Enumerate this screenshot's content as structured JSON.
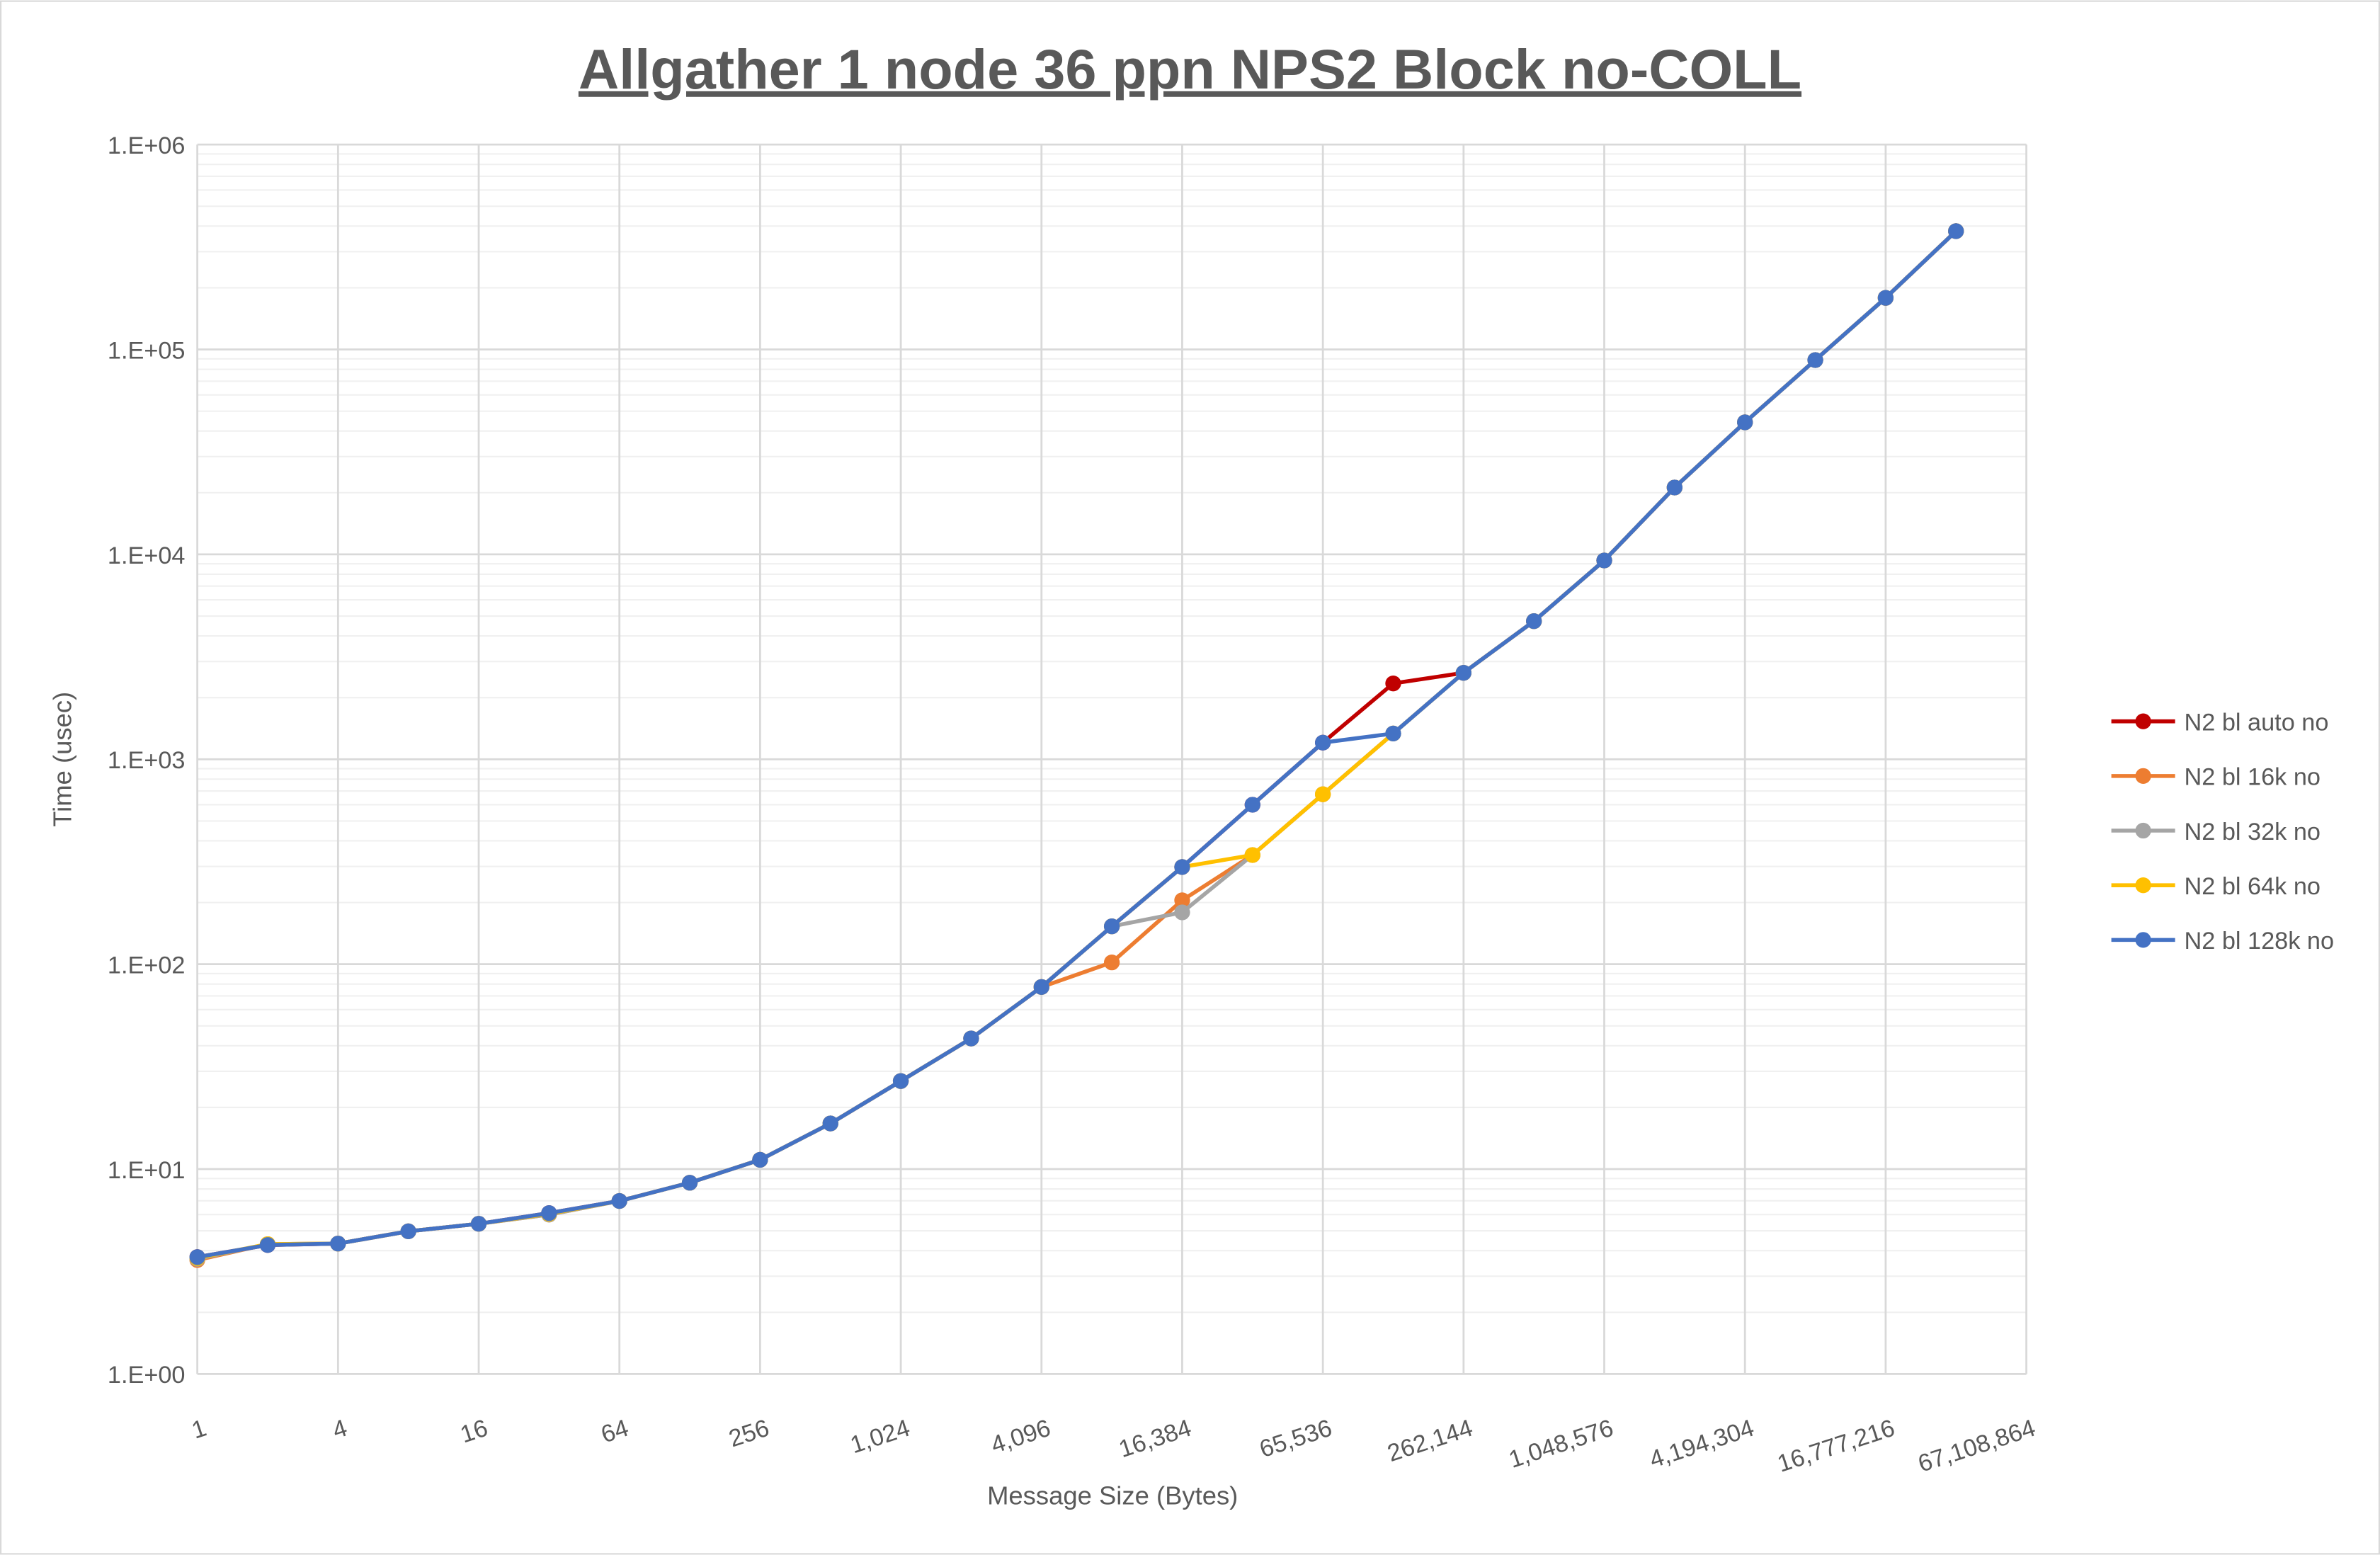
{
  "chart_data": {
    "type": "line",
    "title": "Allgather 1 node 36 ppn NPS2 Block no-COLL",
    "xlabel": "Message Size (Bytes)",
    "ylabel": "Time (usec)",
    "x_scale": "log2",
    "y_scale": "log10",
    "ylim": [
      1,
      1000000
    ],
    "xlim": [
      1,
      67108864
    ],
    "grid": true,
    "legend_position": "right",
    "x_tick_labels": [
      "1",
      "4",
      "16",
      "64",
      "256",
      "1,024",
      "4,096",
      "16,384",
      "65,536",
      "262,144",
      "1,048,576",
      "4,194,304",
      "16,777,216",
      "67,108,864"
    ],
    "y_tick_labels": [
      "1.E+00",
      "1.E+01",
      "1.E+02",
      "1.E+03",
      "1.E+04",
      "1.E+05",
      "1.E+06"
    ],
    "x": [
      1,
      2,
      4,
      8,
      16,
      32,
      64,
      128,
      256,
      512,
      1024,
      2048,
      4096,
      8192,
      16384,
      32768,
      65536,
      131072,
      262144,
      524288,
      1048576,
      2097152,
      4194304,
      8388608,
      16777216,
      33554432
    ],
    "series": [
      {
        "name": "N2 bl auto no",
        "color": "#C00000",
        "values": [
          3.72,
          4.26,
          4.33,
          4.97,
          5.41,
          6.1,
          6.99,
          8.58,
          11.1,
          16.7,
          26.9,
          43.4,
          77.4,
          153,
          298,
          600,
          1206,
          2345,
          2642,
          4722,
          9340,
          21200,
          44100,
          88800,
          178600,
          378000
        ]
      },
      {
        "name": "N2 bl 16k no",
        "color": "#ED7D31",
        "values": [
          3.6,
          4.3,
          4.33,
          4.97,
          5.41,
          6.0,
          6.99,
          8.58,
          11.1,
          16.7,
          26.9,
          43.4,
          77.4,
          102,
          205,
          341,
          675,
          1336,
          2642,
          4722,
          9340,
          21200,
          44100,
          88800,
          178600,
          378000
        ]
      },
      {
        "name": "N2 bl 32k no",
        "color": "#A5A5A5",
        "values": [
          3.65,
          4.3,
          4.33,
          4.97,
          5.41,
          6.0,
          6.99,
          8.58,
          11.1,
          16.7,
          26.9,
          43.4,
          77.4,
          153,
          179,
          341,
          675,
          1336,
          2642,
          4722,
          9340,
          21200,
          44100,
          88800,
          178600,
          378000
        ]
      },
      {
        "name": "N2 bl 64k no",
        "color": "#FFC000",
        "values": [
          3.68,
          4.3,
          4.33,
          4.97,
          5.41,
          6.05,
          6.99,
          8.58,
          11.1,
          16.7,
          26.9,
          43.4,
          77.4,
          153,
          298,
          341,
          675,
          1336,
          2642,
          4722,
          9340,
          21200,
          44100,
          88800,
          178600,
          378000
        ]
      },
      {
        "name": "N2 bl 128k no",
        "color": "#4472C4",
        "values": [
          3.72,
          4.26,
          4.33,
          4.97,
          5.41,
          6.1,
          6.99,
          8.58,
          11.1,
          16.7,
          26.9,
          43.4,
          77.4,
          153,
          298,
          600,
          1206,
          1336,
          2642,
          4722,
          9340,
          21200,
          44100,
          88800,
          178600,
          378000
        ]
      }
    ]
  }
}
